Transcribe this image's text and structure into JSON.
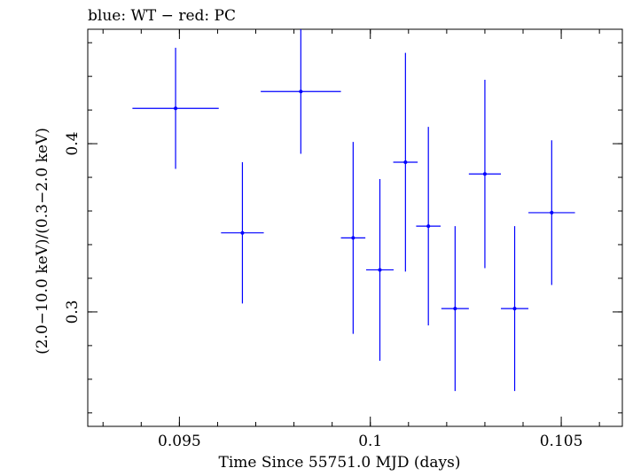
{
  "chart_data": {
    "type": "scatter",
    "title": "blue: WT − red: PC",
    "xlabel": "Time Since 55751.0 MJD (days)",
    "ylabel": "(2.0−10.0 keV)/(0.3−2.0 keV)",
    "xlim": [
      0.0926,
      0.1066
    ],
    "ylim": [
      0.232,
      0.468
    ],
    "xticks": [
      {
        "value": 0.095,
        "label": "0.095"
      },
      {
        "value": 0.1,
        "label": "0.1"
      },
      {
        "value": 0.105,
        "label": "0.105"
      }
    ],
    "yticks": [
      {
        "value": 0.3,
        "label": "0.3"
      },
      {
        "value": 0.4,
        "label": "0.4"
      }
    ],
    "x_minor_step": 0.001,
    "y_minor_step": 0.02,
    "grid": false,
    "series": [
      {
        "name": "WT",
        "color": "#0000ff",
        "points": [
          {
            "x": 0.0949,
            "xerr": 0.00113,
            "y": 0.421,
            "yerr_lo": 0.036,
            "yerr_hi": 0.036
          },
          {
            "x": 0.09665,
            "xerr": 0.00056,
            "y": 0.347,
            "yerr_lo": 0.042,
            "yerr_hi": 0.042
          },
          {
            "x": 0.09818,
            "xerr": 0.00105,
            "y": 0.431,
            "yerr_lo": 0.037,
            "yerr_hi": 0.037
          },
          {
            "x": 0.09955,
            "xerr": 0.00032,
            "y": 0.344,
            "yerr_lo": 0.057,
            "yerr_hi": 0.057
          },
          {
            "x": 0.10025,
            "xerr": 0.00036,
            "y": 0.325,
            "yerr_lo": 0.054,
            "yerr_hi": 0.054
          },
          {
            "x": 0.10092,
            "xerr": 0.00032,
            "y": 0.389,
            "yerr_lo": 0.065,
            "yerr_hi": 0.065
          },
          {
            "x": 0.10152,
            "xerr": 0.00032,
            "y": 0.351,
            "yerr_lo": 0.059,
            "yerr_hi": 0.059
          },
          {
            "x": 0.10222,
            "xerr": 0.00036,
            "y": 0.302,
            "yerr_lo": 0.049,
            "yerr_hi": 0.049
          },
          {
            "x": 0.103,
            "xerr": 0.00042,
            "y": 0.382,
            "yerr_lo": 0.056,
            "yerr_hi": 0.056
          },
          {
            "x": 0.10378,
            "xerr": 0.00036,
            "y": 0.302,
            "yerr_lo": 0.049,
            "yerr_hi": 0.049
          },
          {
            "x": 0.10475,
            "xerr": 0.00061,
            "y": 0.359,
            "yerr_lo": 0.043,
            "yerr_hi": 0.043
          }
        ]
      }
    ]
  }
}
